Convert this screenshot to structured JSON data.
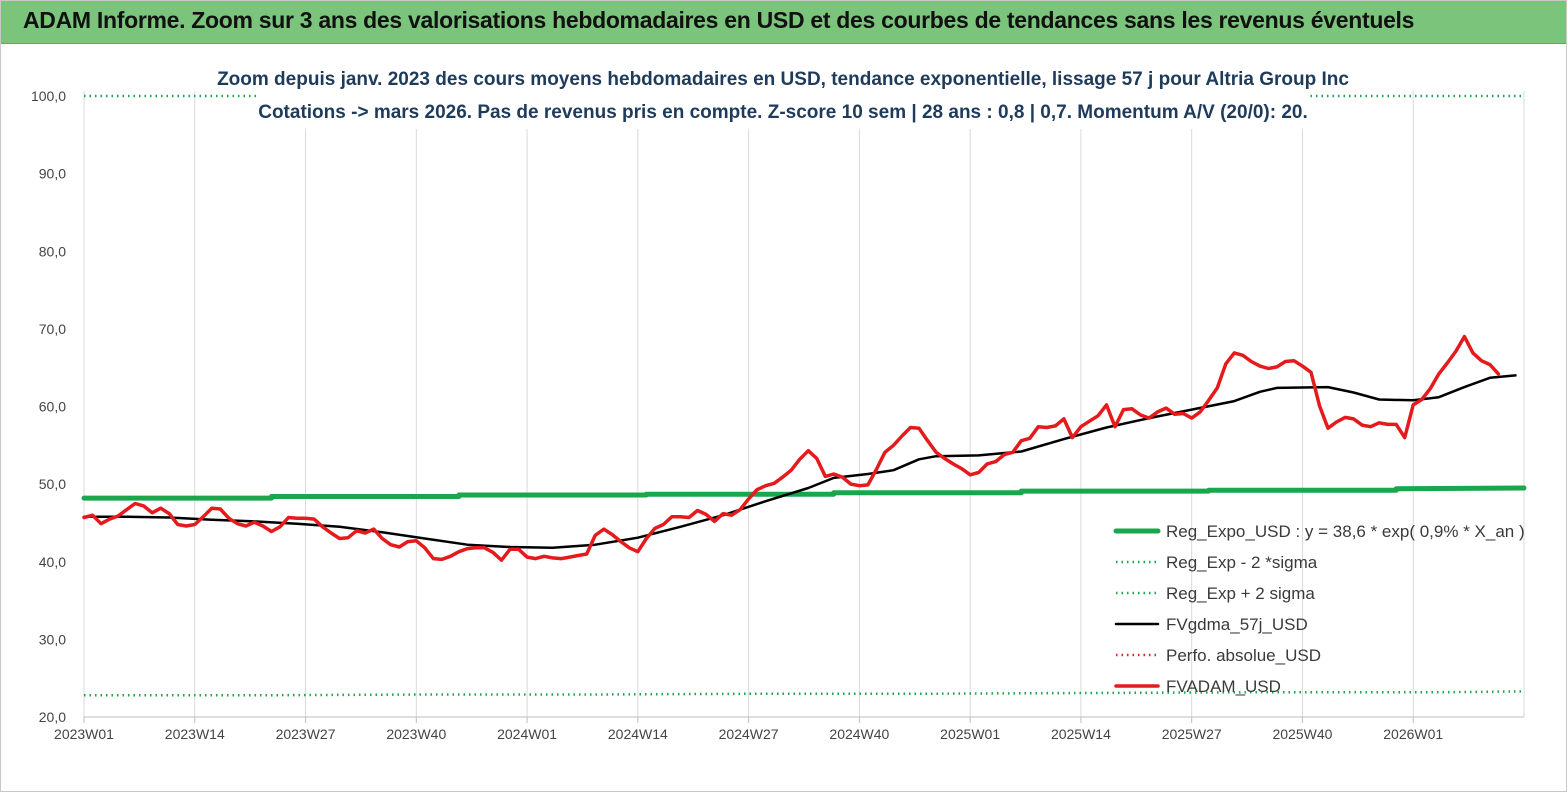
{
  "header": {
    "title": "ADAM Informe. Zoom sur 3 ans des valorisations hebdomadaires en USD et des courbes de tendances sans les revenus éventuels"
  },
  "chart_data": {
    "type": "line",
    "title": "Zoom depuis janv. 2023 des cours moyens hebdomadaires en USD, tendance exponentielle, lissage 57 j pour Altria Group Inc",
    "subtitle": "Cotations -> mars 2026. Pas de revenus pris en compte. Z-score 10 sem  | 28 ans : 0,8 | 0,7. Momentum A/V (20/0): 20.",
    "ylim": [
      20,
      100
    ],
    "y_ticks": [
      "20,0",
      "30,0",
      "40,0",
      "50,0",
      "60,0",
      "70,0",
      "80,0",
      "90,0",
      "100,0"
    ],
    "x_range": [
      0,
      169
    ],
    "x_ticks": [
      {
        "label": "2023W01",
        "index": 0
      },
      {
        "label": "2023W14",
        "index": 13
      },
      {
        "label": "2023W27",
        "index": 26
      },
      {
        "label": "2023W40",
        "index": 39
      },
      {
        "label": "2024W01",
        "index": 52
      },
      {
        "label": "2024W14",
        "index": 65
      },
      {
        "label": "2024W27",
        "index": 78
      },
      {
        "label": "2024W40",
        "index": 91
      },
      {
        "label": "2025W01",
        "index": 104
      },
      {
        "label": "2025W14",
        "index": 117
      },
      {
        "label": "2025W27",
        "index": 130
      },
      {
        "label": "2025W40",
        "index": 143
      },
      {
        "label": "2026W01",
        "index": 156
      }
    ],
    "grid": "vertical",
    "legend_position": "bottom-right",
    "series": [
      {
        "name": "Reg_Expo_USD : y = 38,6 * exp( 0,9% *  X_an )",
        "color": "#1aa64a",
        "style": "solid",
        "points": [
          [
            0,
            48.2
          ],
          [
            22,
            48.2
          ],
          [
            22,
            48.4
          ],
          [
            44,
            48.4
          ],
          [
            44,
            48.6
          ],
          [
            66,
            48.6
          ],
          [
            66,
            48.7
          ],
          [
            88,
            48.7
          ],
          [
            88,
            48.9
          ],
          [
            110,
            48.9
          ],
          [
            110,
            49.1
          ],
          [
            132,
            49.1
          ],
          [
            132,
            49.2
          ],
          [
            154,
            49.2
          ],
          [
            154,
            49.4
          ],
          [
            169,
            49.5
          ]
        ]
      },
      {
        "name": "Reg_Exp - 2 *sigma",
        "color": "#1aa64a",
        "style": "dotted",
        "points": [
          [
            0,
            22.8
          ],
          [
            20,
            22.8
          ],
          [
            40,
            22.9
          ],
          [
            60,
            22.9
          ],
          [
            80,
            23.0
          ],
          [
            100,
            23.0
          ],
          [
            120,
            23.1
          ],
          [
            140,
            23.2
          ],
          [
            160,
            23.2
          ],
          [
            169,
            23.3
          ]
        ]
      },
      {
        "name": "Reg_Exp + 2 sigma",
        "color": "#1aa64a",
        "style": "dotted",
        "points": [
          [
            0,
            100.0
          ],
          [
            169,
            100.0
          ]
        ]
      },
      {
        "name": "FVgdma_57j_USD",
        "color": "#000000",
        "style": "solid",
        "points": [
          [
            0,
            45.8
          ],
          [
            5,
            45.8
          ],
          [
            10,
            45.7
          ],
          [
            15,
            45.4
          ],
          [
            20,
            45.2
          ],
          [
            25,
            44.9
          ],
          [
            30,
            44.5
          ],
          [
            35,
            43.8
          ],
          [
            40,
            43.0
          ],
          [
            45,
            42.2
          ],
          [
            50,
            41.9
          ],
          [
            55,
            41.8
          ],
          [
            60,
            42.2
          ],
          [
            65,
            43.1
          ],
          [
            70,
            44.5
          ],
          [
            75,
            46.0
          ],
          [
            80,
            47.8
          ],
          [
            85,
            49.5
          ],
          [
            88,
            50.8
          ],
          [
            92,
            51.3
          ],
          [
            95,
            51.8
          ],
          [
            98,
            53.2
          ],
          [
            100,
            53.6
          ],
          [
            105,
            53.7
          ],
          [
            110,
            54.2
          ],
          [
            115,
            55.8
          ],
          [
            120,
            57.3
          ],
          [
            125,
            58.5
          ],
          [
            130,
            59.6
          ],
          [
            135,
            60.7
          ],
          [
            138,
            61.9
          ],
          [
            140,
            62.4
          ],
          [
            146,
            62.5
          ],
          [
            149,
            61.8
          ],
          [
            152,
            60.9
          ],
          [
            156,
            60.8
          ],
          [
            159,
            61.2
          ],
          [
            162,
            62.5
          ],
          [
            165,
            63.7
          ],
          [
            168,
            64.0
          ]
        ]
      },
      {
        "name": "Perfo. absolue_USD",
        "color": "#e41a1c",
        "style": "dotted",
        "points": []
      },
      {
        "name": "FVADAM_USD",
        "color": "#e41a1c",
        "style": "solid",
        "points": [
          [
            0,
            45.7
          ],
          [
            1,
            46.0
          ],
          [
            2,
            44.9
          ],
          [
            3,
            45.5
          ],
          [
            4,
            45.9
          ],
          [
            5,
            46.7
          ],
          [
            6,
            47.5
          ],
          [
            7,
            47.2
          ],
          [
            8,
            46.3
          ],
          [
            9,
            46.9
          ],
          [
            10,
            46.2
          ],
          [
            11,
            44.8
          ],
          [
            12,
            44.6
          ],
          [
            13,
            44.8
          ],
          [
            14,
            45.8
          ],
          [
            15,
            46.9
          ],
          [
            16,
            46.8
          ],
          [
            17,
            45.6
          ],
          [
            18,
            44.9
          ],
          [
            19,
            44.6
          ],
          [
            20,
            45.1
          ],
          [
            21,
            44.6
          ],
          [
            22,
            43.9
          ],
          [
            23,
            44.5
          ],
          [
            24,
            45.7
          ],
          [
            25,
            45.6
          ],
          [
            26,
            45.6
          ],
          [
            27,
            45.5
          ],
          [
            28,
            44.5
          ],
          [
            29,
            43.7
          ],
          [
            30,
            43.0
          ],
          [
            31,
            43.1
          ],
          [
            32,
            44.0
          ],
          [
            33,
            43.7
          ],
          [
            34,
            44.2
          ],
          [
            35,
            43.0
          ],
          [
            36,
            42.2
          ],
          [
            37,
            41.9
          ],
          [
            38,
            42.6
          ],
          [
            39,
            42.7
          ],
          [
            40,
            41.8
          ],
          [
            41,
            40.4
          ],
          [
            42,
            40.3
          ],
          [
            43,
            40.7
          ],
          [
            44,
            41.3
          ],
          [
            45,
            41.7
          ],
          [
            46,
            41.8
          ],
          [
            47,
            41.8
          ],
          [
            48,
            41.2
          ],
          [
            49,
            40.2
          ],
          [
            50,
            41.6
          ],
          [
            51,
            41.6
          ],
          [
            52,
            40.6
          ],
          [
            53,
            40.4
          ],
          [
            54,
            40.7
          ],
          [
            55,
            40.5
          ],
          [
            56,
            40.4
          ],
          [
            57,
            40.6
          ],
          [
            58,
            40.8
          ],
          [
            59,
            41.0
          ],
          [
            60,
            43.4
          ],
          [
            61,
            44.2
          ],
          [
            62,
            43.5
          ],
          [
            63,
            42.6
          ],
          [
            64,
            41.8
          ],
          [
            65,
            41.3
          ],
          [
            66,
            43.0
          ],
          [
            67,
            44.3
          ],
          [
            68,
            44.8
          ],
          [
            69,
            45.8
          ],
          [
            70,
            45.8
          ],
          [
            71,
            45.7
          ],
          [
            72,
            46.6
          ],
          [
            73,
            46.1
          ],
          [
            74,
            45.2
          ],
          [
            75,
            46.2
          ],
          [
            76,
            46.0
          ],
          [
            77,
            46.7
          ],
          [
            78,
            48.1
          ],
          [
            79,
            49.3
          ],
          [
            80,
            49.8
          ],
          [
            81,
            50.1
          ],
          [
            82,
            50.9
          ],
          [
            83,
            51.8
          ],
          [
            84,
            53.2
          ],
          [
            85,
            54.3
          ],
          [
            86,
            53.3
          ],
          [
            87,
            51.0
          ],
          [
            88,
            51.3
          ],
          [
            89,
            50.9
          ],
          [
            90,
            50.0
          ],
          [
            91,
            49.8
          ],
          [
            92,
            49.9
          ],
          [
            93,
            51.9
          ],
          [
            94,
            54.1
          ],
          [
            95,
            55.0
          ],
          [
            96,
            56.2
          ],
          [
            97,
            57.3
          ],
          [
            98,
            57.2
          ],
          [
            99,
            55.6
          ],
          [
            100,
            54.1
          ],
          [
            101,
            53.3
          ],
          [
            102,
            52.6
          ],
          [
            103,
            52.0
          ],
          [
            104,
            51.2
          ],
          [
            105,
            51.5
          ],
          [
            106,
            52.6
          ],
          [
            107,
            52.9
          ],
          [
            108,
            53.8
          ],
          [
            109,
            54.1
          ],
          [
            110,
            55.6
          ],
          [
            111,
            55.9
          ],
          [
            112,
            57.4
          ],
          [
            113,
            57.3
          ],
          [
            114,
            57.5
          ],
          [
            115,
            58.4
          ],
          [
            116,
            56.0
          ],
          [
            117,
            57.4
          ],
          [
            118,
            58.1
          ],
          [
            119,
            58.8
          ],
          [
            120,
            60.2
          ],
          [
            121,
            57.4
          ],
          [
            122,
            59.6
          ],
          [
            123,
            59.7
          ],
          [
            124,
            58.9
          ],
          [
            125,
            58.5
          ],
          [
            126,
            59.3
          ],
          [
            127,
            59.8
          ],
          [
            128,
            59.0
          ],
          [
            129,
            59.1
          ],
          [
            130,
            58.5
          ],
          [
            131,
            59.3
          ],
          [
            132,
            60.8
          ],
          [
            133,
            62.4
          ],
          [
            134,
            65.5
          ],
          [
            135,
            66.9
          ],
          [
            136,
            66.6
          ],
          [
            137,
            65.8
          ],
          [
            138,
            65.2
          ],
          [
            139,
            64.9
          ],
          [
            140,
            65.1
          ],
          [
            141,
            65.8
          ],
          [
            142,
            65.9
          ],
          [
            143,
            65.2
          ],
          [
            144,
            64.4
          ],
          [
            145,
            60.1
          ],
          [
            146,
            57.2
          ],
          [
            147,
            58.0
          ],
          [
            148,
            58.6
          ],
          [
            149,
            58.4
          ],
          [
            150,
            57.6
          ],
          [
            151,
            57.4
          ],
          [
            152,
            57.9
          ],
          [
            153,
            57.7
          ],
          [
            154,
            57.7
          ],
          [
            155,
            56.0
          ],
          [
            156,
            60.2
          ],
          [
            157,
            60.9
          ],
          [
            158,
            62.3
          ],
          [
            159,
            64.2
          ],
          [
            160,
            65.6
          ],
          [
            161,
            67.1
          ],
          [
            162,
            69.0
          ],
          [
            163,
            66.9
          ],
          [
            164,
            65.9
          ],
          [
            165,
            65.4
          ],
          [
            166,
            64.2
          ]
        ]
      }
    ]
  }
}
